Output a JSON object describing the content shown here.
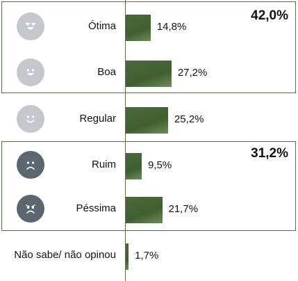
{
  "chart_data": {
    "type": "bar",
    "orientation": "horizontal",
    "unit": "%",
    "categories": [
      "Ótima",
      "Boa",
      "Regular",
      "Ruim",
      "Péssima",
      "Não sabe/ não opinou"
    ],
    "values": [
      14.8,
      27.2,
      25.2,
      9.5,
      21.7,
      1.7
    ],
    "value_labels": [
      "14,8%",
      "27,2%",
      "25,2%",
      "9,5%",
      "21,7%",
      "1,7%"
    ],
    "face_icons": [
      "heart-eyes-face-icon",
      "smiling-face-icon",
      "slight-smile-face-icon",
      "frowning-face-icon",
      "angry-face-icon",
      ""
    ],
    "groups": [
      {
        "categories": [
          "Ótima",
          "Boa"
        ],
        "total_label": "42,0%"
      },
      {
        "categories": [
          "Ruim",
          "Péssima"
        ],
        "total_label": "31,2%"
      }
    ],
    "colors": {
      "bar": "#4a6b3a",
      "face_light": "#c4c8cc",
      "face_dark": "#5b6670",
      "box_border": "#5a6e4e"
    }
  }
}
